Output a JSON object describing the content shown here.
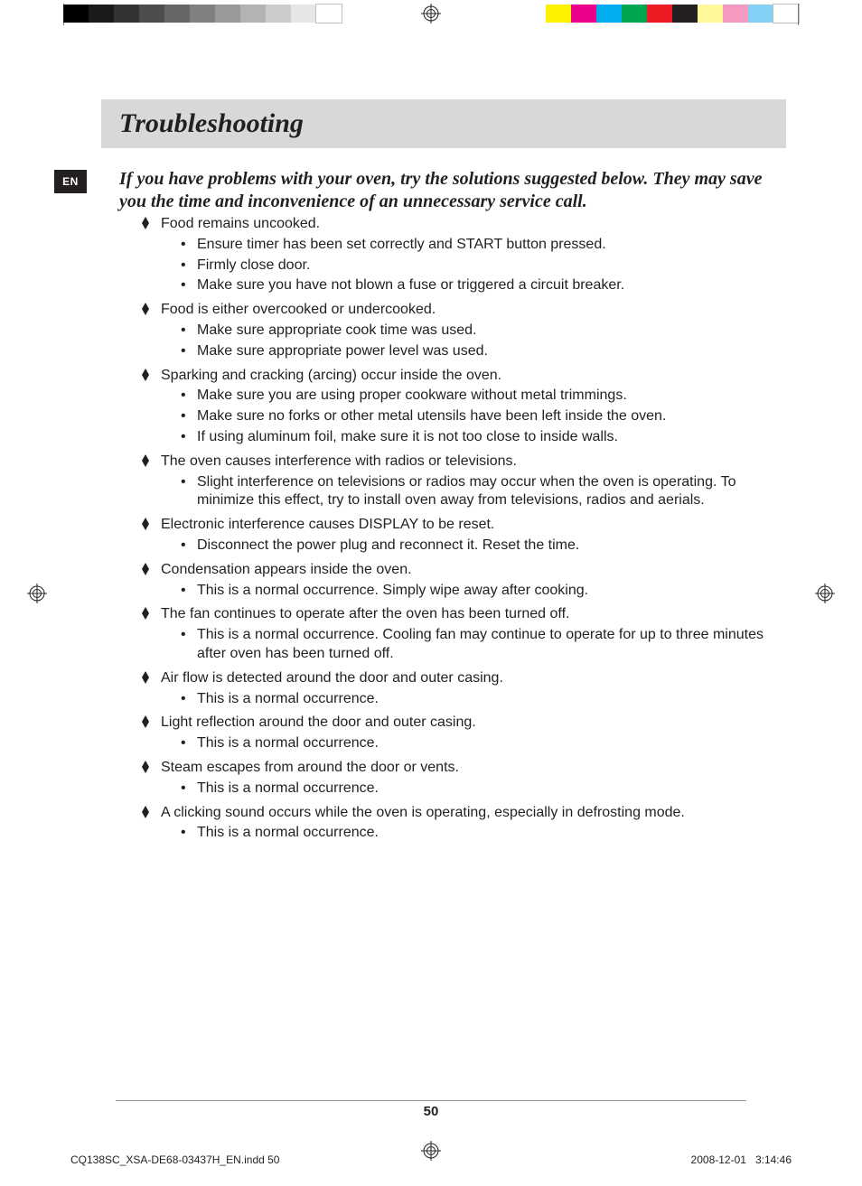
{
  "printer_marks": {
    "gray_strip": [
      "#000000",
      "#1a1a1a",
      "#333333",
      "#4d4d4d",
      "#666666",
      "#808080",
      "#999999",
      "#b3b3b3",
      "#cccccc",
      "#e6e6e6",
      "#ffffff"
    ],
    "color_strip": [
      "#fff200",
      "#ec008c",
      "#00aeef",
      "#00a651",
      "#ed1c24",
      "#231f20",
      "#fff799",
      "#f49ac1",
      "#83d0f5",
      "#ffffff"
    ],
    "reg_mark_color": "#231f20"
  },
  "lang_badge": "EN",
  "title": "Troubleshooting",
  "intro": "If you have problems with your oven, try the solutions suggested below. They may save you the time and inconvenience of an unnecessary service call.",
  "items": [
    {
      "title": "Food remains uncooked.",
      "subs": [
        "Ensure timer has been set correctly and START button pressed.",
        "Firmly close door.",
        "Make sure you have not blown a fuse or triggered a circuit breaker."
      ]
    },
    {
      "title": "Food is either overcooked or undercooked.",
      "subs": [
        "Make sure appropriate cook time was used.",
        "Make sure appropriate power level was used."
      ]
    },
    {
      "title": "Sparking and cracking (arcing) occur inside the oven.",
      "subs": [
        "Make sure you are using proper cookware without metal trimmings.",
        "Make sure no forks or other metal utensils have been left inside the oven.",
        "If using aluminum foil, make sure it is not too close to inside walls."
      ]
    },
    {
      "title": "The oven causes interference with radios or televisions.",
      "subs": [
        "Slight interference on televisions or radios may occur when the oven is operating. To minimize this effect, try to install oven away from televisions, radios and aerials."
      ]
    },
    {
      "title": "Electronic interference causes DISPLAY to be reset.",
      "subs": [
        "Disconnect the power plug and reconnect it. Reset the time."
      ]
    },
    {
      "title": "Condensation appears inside the oven.",
      "subs": [
        "This is a normal occurrence. Simply wipe away after cooking."
      ]
    },
    {
      "title": "The fan continues to operate after the oven has been turned off.",
      "subs": [
        "This is a normal occurrence. Cooling fan may continue to operate for up to three minutes after oven has been turned off."
      ]
    },
    {
      "title": "Air flow is detected around the door and outer casing.",
      "subs": [
        "This is a normal occurrence."
      ]
    },
    {
      "title": "Light reflection around the door and outer casing.",
      "subs": [
        "This is a normal occurrence."
      ]
    },
    {
      "title": "Steam escapes from around the door or vents.",
      "subs": [
        "This is a normal occurrence."
      ]
    },
    {
      "title": "A clicking sound occurs while the oven is operating, especially in defrosting mode.",
      "subs": [
        "This is a normal occurrence."
      ]
    }
  ],
  "page_number": "50",
  "slug_file": "CQ138SC_XSA-DE68-03437H_EN.indd   50",
  "slug_date": "2008-12-01",
  "slug_time": "3:14:46",
  "colors": {
    "header_band_bg": "#d7d8d9",
    "text": "#231f20",
    "badge_bg": "#231f20",
    "badge_fg": "#ffffff",
    "rule": "#9a9a9a"
  },
  "typography": {
    "title_family": "Times New Roman",
    "title_style": "italic bold",
    "title_size_pt": 22,
    "intro_family": "Times New Roman",
    "intro_style": "italic bold",
    "intro_size_pt": 15,
    "body_family": "Arial",
    "body_size_pt": 12,
    "page_num_weight": "bold"
  }
}
